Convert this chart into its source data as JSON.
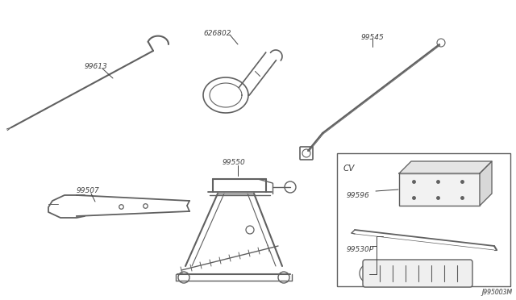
{
  "bg_color": "#ffffff",
  "line_color": "#606060",
  "text_color": "#404040",
  "border_color": "#606060",
  "diagram_code": "J995003M",
  "label_fontsize": 6.5,
  "code_fontsize": 5.5,
  "cv_label_fontsize": 7.5
}
